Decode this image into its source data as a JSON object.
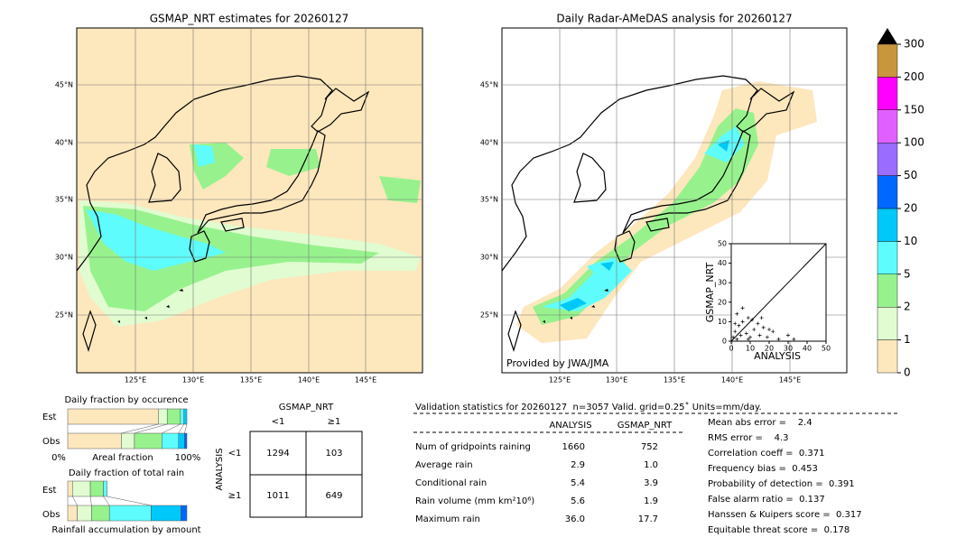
{
  "left_map": {
    "title": "GSMAP_NRT estimates for 20260127",
    "lat_labels": [
      "45°N",
      "40°N",
      "35°N",
      "30°N",
      "25°N"
    ],
    "lon_labels": [
      "125°E",
      "130°E",
      "135°E",
      "140°E",
      "145°E"
    ]
  },
  "right_map": {
    "title": "Daily Radar-AMeDAS analysis for 20260127",
    "lat_labels": [
      "45°N",
      "40°N",
      "35°N",
      "30°N",
      "25°N"
    ],
    "lon_labels": [
      "125°E",
      "130°E",
      "135°E",
      "140°E",
      "145°E"
    ],
    "credit": "Provided by JWA/JMA"
  },
  "colorbar": {
    "labels": [
      "0",
      "1",
      "2",
      "5",
      "10",
      "20",
      "50",
      "100",
      "150",
      "200",
      "300"
    ],
    "colors": [
      "#fde7bd",
      "#e0fcd0",
      "#97f28d",
      "#5efcfc",
      "#00c8f8",
      "#0068ff",
      "#9a6cff",
      "#e060ff",
      "#ff00ff",
      "#c8963c"
    ]
  },
  "scatter": {
    "xlabel": "ANALYSIS",
    "ylabel": "GSMAP_NRT",
    "xlim": [
      0,
      50
    ],
    "ylim": [
      0,
      50
    ],
    "xticks": [
      0,
      10,
      20,
      30,
      40,
      50
    ],
    "yticks": [
      0,
      10,
      20,
      30,
      40,
      50
    ],
    "x": [
      1,
      2,
      3,
      4,
      5,
      6,
      8,
      9,
      10,
      12,
      14,
      15,
      17,
      19,
      22,
      25,
      30,
      33,
      6,
      3,
      11,
      16,
      20,
      9,
      2
    ],
    "y": [
      2,
      5,
      1,
      8,
      3,
      10,
      4,
      12,
      2,
      6,
      9,
      3,
      7,
      2,
      5,
      1,
      3,
      1,
      17,
      14,
      11,
      12,
      6,
      1,
      9
    ]
  },
  "occurrence": {
    "title": "Daily fraction by occurence",
    "rows": [
      "Est",
      "Obs"
    ],
    "axis_left": "0%",
    "axis_label": "Areal fraction",
    "axis_right": "100%",
    "est": [
      76,
      7.5,
      11,
      3,
      2.5
    ],
    "obs": [
      45,
      11,
      23,
      14,
      5,
      2
    ]
  },
  "total_rain": {
    "title": "Daily fraction of total rain",
    "rows": [
      "Est",
      "Obs"
    ],
    "footer": "Rainfall accumulation by amount",
    "est": [
      4,
      15,
      11,
      3
    ],
    "obs": [
      8,
      12,
      15,
      35,
      25,
      5
    ]
  },
  "contingency": {
    "title": "GSMAP_NRT",
    "cols": [
      "<1",
      "≥1"
    ],
    "row_title": "ANALYSIS",
    "rows": [
      "<1",
      "≥1"
    ],
    "cells": [
      [
        "1294",
        "103"
      ],
      [
        "1011",
        "649"
      ]
    ]
  },
  "validation": {
    "header": "Validation statistics for 20260127  n=3057 Valid. grid=0.25˚ Units=mm/day.",
    "columns": [
      "ANALYSIS",
      "GSMAP_NRT"
    ],
    "rows": [
      [
        "Num of gridpoints raining",
        "1660",
        "752"
      ],
      [
        "Average rain",
        "2.9",
        "1.0"
      ],
      [
        "Conditional rain",
        "5.4",
        "3.9"
      ],
      [
        "Rain volume (mm km²10⁶)",
        "5.6",
        "1.9"
      ],
      [
        "Maximum rain",
        "36.0",
        "17.7"
      ]
    ],
    "scores": [
      "Mean abs error =    2.4",
      "RMS error =    4.3",
      "Correlation coeff =  0.371",
      "Frequency bias =  0.453",
      "Probability of detection =  0.391",
      "False alarm ratio =  0.137",
      "Hanssen & Kuipers score =  0.317",
      "Equitable threat score =  0.178"
    ]
  }
}
